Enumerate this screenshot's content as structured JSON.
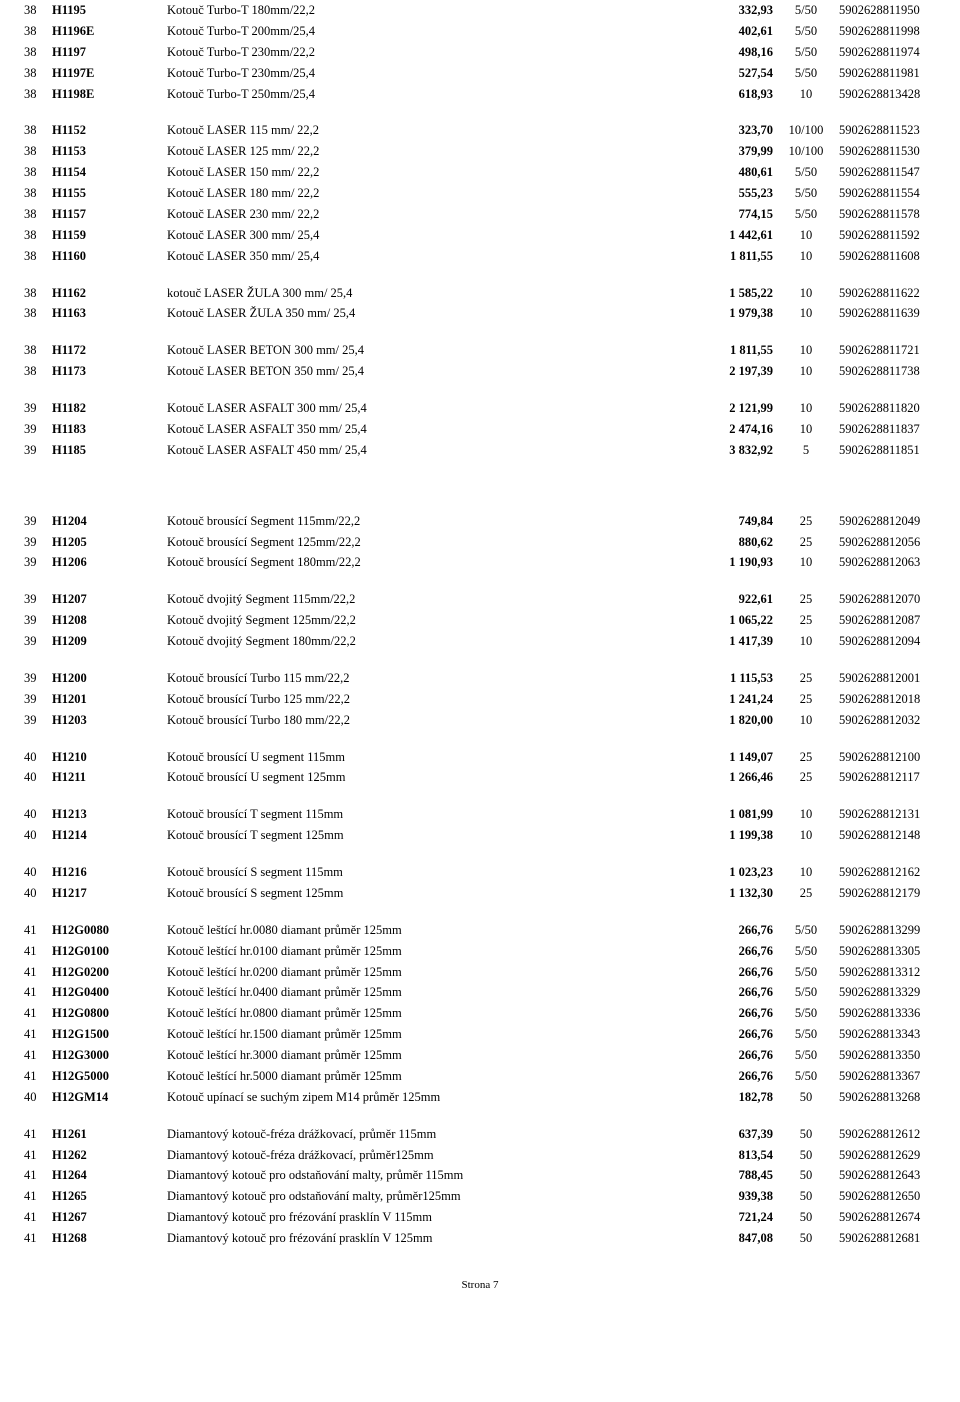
{
  "footer": "Strona 7",
  "groups": [
    [
      {
        "pg": "38",
        "code": "H1195",
        "desc": "Kotouč Turbo-T 180mm/22,2",
        "price": "332,93",
        "pack": "5/50",
        "ean": "5902628811950"
      },
      {
        "pg": "38",
        "code": "H1196E",
        "desc": "Kotouč Turbo-T 200mm/25,4",
        "price": "402,61",
        "pack": "5/50",
        "ean": "5902628811998"
      },
      {
        "pg": "38",
        "code": "H1197",
        "desc": "Kotouč Turbo-T 230mm/22,2",
        "price": "498,16",
        "pack": "5/50",
        "ean": "5902628811974"
      },
      {
        "pg": "38",
        "code": "H1197E",
        "desc": "Kotouč Turbo-T 230mm/25,4",
        "price": "527,54",
        "pack": "5/50",
        "ean": "5902628811981"
      },
      {
        "pg": "38",
        "code": "H1198E",
        "desc": "Kotouč Turbo-T 250mm/25,4",
        "price": "618,93",
        "pack": "10",
        "ean": "5902628813428"
      }
    ],
    [
      {
        "pg": "38",
        "code": "H1152",
        "desc": "Kotouč LASER 115 mm/ 22,2",
        "price": "323,70",
        "pack": "10/100",
        "ean": "5902628811523"
      },
      {
        "pg": "38",
        "code": "H1153",
        "desc": "Kotouč LASER 125 mm/ 22,2",
        "price": "379,99",
        "pack": "10/100",
        "ean": "5902628811530"
      },
      {
        "pg": "38",
        "code": "H1154",
        "desc": "Kotouč LASER 150 mm/ 22,2",
        "price": "480,61",
        "pack": "5/50",
        "ean": "5902628811547"
      },
      {
        "pg": "38",
        "code": "H1155",
        "desc": "Kotouč LASER 180 mm/ 22,2",
        "price": "555,23",
        "pack": "5/50",
        "ean": "5902628811554"
      },
      {
        "pg": "38",
        "code": "H1157",
        "desc": "Kotouč LASER 230 mm/ 22,2",
        "price": "774,15",
        "pack": "5/50",
        "ean": "5902628811578"
      },
      {
        "pg": "38",
        "code": "H1159",
        "desc": "Kotouč LASER 300 mm/ 25,4",
        "price": "1 442,61",
        "pack": "10",
        "ean": "5902628811592"
      },
      {
        "pg": "38",
        "code": "H1160",
        "desc": "Kotouč LASER 350 mm/ 25,4",
        "price": "1 811,55",
        "pack": "10",
        "ean": "5902628811608"
      }
    ],
    [
      {
        "pg": "38",
        "code": "H1162",
        "desc": "kotouč LASER ŽULA 300 mm/ 25,4",
        "price": "1 585,22",
        "pack": "10",
        "ean": "5902628811622"
      },
      {
        "pg": "38",
        "code": "H1163",
        "desc": "Kotouč LASER ŽULA 350 mm/ 25,4",
        "price": "1 979,38",
        "pack": "10",
        "ean": "5902628811639"
      }
    ],
    [
      {
        "pg": "38",
        "code": "H1172",
        "desc": "Kotouč LASER BETON 300 mm/ 25,4",
        "price": "1 811,55",
        "pack": "10",
        "ean": "5902628811721"
      },
      {
        "pg": "38",
        "code": "H1173",
        "desc": "Kotouč LASER BETON 350 mm/ 25,4",
        "price": "2 197,39",
        "pack": "10",
        "ean": "5902628811738"
      }
    ],
    [
      {
        "pg": "39",
        "code": "H1182",
        "desc": "Kotouč LASER ASFALT 300 mm/ 25,4",
        "price": "2 121,99",
        "pack": "10",
        "ean": "5902628811820"
      },
      {
        "pg": "39",
        "code": "H1183",
        "desc": "Kotouč LASER ASFALT 350 mm/ 25,4",
        "price": "2 474,16",
        "pack": "10",
        "ean": "5902628811837"
      },
      {
        "pg": "39",
        "code": "H1185",
        "desc": "Kotouč LASER ASFALT 450 mm/ 25,4",
        "price": "3 832,92",
        "pack": "5",
        "ean": "5902628811851"
      }
    ],
    "BIG",
    [
      {
        "pg": "39",
        "code": "H1204",
        "desc": "Kotouč brousící Segment 115mm/22,2",
        "price": "749,84",
        "pack": "25",
        "ean": "5902628812049"
      },
      {
        "pg": "39",
        "code": "H1205",
        "desc": "Kotouč brousící Segment 125mm/22,2",
        "price": "880,62",
        "pack": "25",
        "ean": "5902628812056"
      },
      {
        "pg": "39",
        "code": "H1206",
        "desc": "Kotouč brousící Segment 180mm/22,2",
        "price": "1 190,93",
        "pack": "10",
        "ean": "5902628812063"
      }
    ],
    [
      {
        "pg": "39",
        "code": "H1207",
        "desc": "Kotouč dvojitý Segment 115mm/22,2",
        "price": "922,61",
        "pack": "25",
        "ean": "5902628812070"
      },
      {
        "pg": "39",
        "code": "H1208",
        "desc": "Kotouč dvojitý Segment 125mm/22,2",
        "price": "1 065,22",
        "pack": "25",
        "ean": "5902628812087"
      },
      {
        "pg": "39",
        "code": "H1209",
        "desc": "Kotouč dvojitý Segment 180mm/22,2",
        "price": "1 417,39",
        "pack": "10",
        "ean": "5902628812094"
      }
    ],
    [
      {
        "pg": "39",
        "code": "H1200",
        "desc": "Kotouč brousící Turbo 115 mm/22,2",
        "price": "1 115,53",
        "pack": "25",
        "ean": "5902628812001"
      },
      {
        "pg": "39",
        "code": "H1201",
        "desc": "Kotouč brousící Turbo 125 mm/22,2",
        "price": "1 241,24",
        "pack": "25",
        "ean": "5902628812018"
      },
      {
        "pg": "39",
        "code": "H1203",
        "desc": "Kotouč brousící Turbo 180 mm/22,2",
        "price": "1 820,00",
        "pack": "10",
        "ean": "5902628812032"
      }
    ],
    [
      {
        "pg": "40",
        "code": "H1210",
        "desc": "Kotouč brousící U segment 115mm",
        "price": "1 149,07",
        "pack": "25",
        "ean": "5902628812100"
      },
      {
        "pg": "40",
        "code": "H1211",
        "desc": "Kotouč brousící U segment 125mm",
        "price": "1 266,46",
        "pack": "25",
        "ean": "5902628812117"
      }
    ],
    [
      {
        "pg": "40",
        "code": "H1213",
        "desc": "Kotouč brousící T segment 115mm",
        "price": "1 081,99",
        "pack": "10",
        "ean": "5902628812131"
      },
      {
        "pg": "40",
        "code": "H1214",
        "desc": "Kotouč brousící T segment 125mm",
        "price": "1 199,38",
        "pack": "10",
        "ean": "5902628812148"
      }
    ],
    [
      {
        "pg": "40",
        "code": "H1216",
        "desc": "Kotouč brousící S segment 115mm",
        "price": "1 023,23",
        "pack": "10",
        "ean": "5902628812162"
      },
      {
        "pg": "40",
        "code": "H1217",
        "desc": "Kotouč brousící S segment 125mm",
        "price": "1 132,30",
        "pack": "25",
        "ean": "5902628812179"
      }
    ],
    [
      {
        "pg": "41",
        "code": "H12G0080",
        "desc": "Kotouč leštící hr.0080 diamant průměr 125mm",
        "price": "266,76",
        "pack": "5/50",
        "ean": "5902628813299"
      },
      {
        "pg": "41",
        "code": "H12G0100",
        "desc": "Kotouč leštící hr.0100 diamant průměr 125mm",
        "price": "266,76",
        "pack": "5/50",
        "ean": "5902628813305"
      },
      {
        "pg": "41",
        "code": "H12G0200",
        "desc": "Kotouč leštící hr.0200 diamant průměr 125mm",
        "price": "266,76",
        "pack": "5/50",
        "ean": "5902628813312"
      },
      {
        "pg": "41",
        "code": "H12G0400",
        "desc": "Kotouč leštící hr.0400 diamant průměr 125mm",
        "price": "266,76",
        "pack": "5/50",
        "ean": "5902628813329"
      },
      {
        "pg": "41",
        "code": "H12G0800",
        "desc": "Kotouč leštící hr.0800 diamant průměr 125mm",
        "price": "266,76",
        "pack": "5/50",
        "ean": "5902628813336"
      },
      {
        "pg": "41",
        "code": "H12G1500",
        "desc": "Kotouč leštící hr.1500 diamant průměr 125mm",
        "price": "266,76",
        "pack": "5/50",
        "ean": "5902628813343"
      },
      {
        "pg": "41",
        "code": "H12G3000",
        "desc": "Kotouč leštící hr.3000 diamant průměr 125mm",
        "price": "266,76",
        "pack": "5/50",
        "ean": "5902628813350"
      },
      {
        "pg": "41",
        "code": "H12G5000",
        "desc": "Kotouč leštící hr.5000 diamant průměr 125mm",
        "price": "266,76",
        "pack": "5/50",
        "ean": "5902628813367"
      },
      {
        "pg": "40",
        "code": "H12GM14",
        "desc": "Kotouč upínací se suchým zipem M14 průměr 125mm",
        "price": "182,78",
        "pack": "50",
        "ean": "5902628813268"
      }
    ],
    [
      {
        "pg": "41",
        "code": "H1261",
        "desc": "Diamantový kotouč-fréza drážkovací, průměr 115mm",
        "price": "637,39",
        "pack": "50",
        "ean": "5902628812612"
      },
      {
        "pg": "41",
        "code": "H1262",
        "desc": "Diamantový kotouč-fréza drážkovací, průměr125mm",
        "price": "813,54",
        "pack": "50",
        "ean": "5902628812629"
      },
      {
        "pg": "41",
        "code": "H1264",
        "desc": "Diamantový kotouč pro odstaňování malty, průměr 115mm",
        "price": "788,45",
        "pack": "50",
        "ean": "5902628812643"
      },
      {
        "pg": "41",
        "code": "H1265",
        "desc": "Diamantový kotouč pro odstaňování malty, průměr125mm",
        "price": "939,38",
        "pack": "50",
        "ean": "5902628812650"
      },
      {
        "pg": "41",
        "code": "H1267",
        "desc": "Diamantový kotouč pro frézování prasklín V 115mm",
        "price": "721,24",
        "pack": "50",
        "ean": "5902628812674"
      },
      {
        "pg": "41",
        "code": "H1268",
        "desc": "Diamantový kotouč pro frézování prasklín V 125mm",
        "price": "847,08",
        "pack": "50",
        "ean": "5902628812681"
      }
    ]
  ]
}
